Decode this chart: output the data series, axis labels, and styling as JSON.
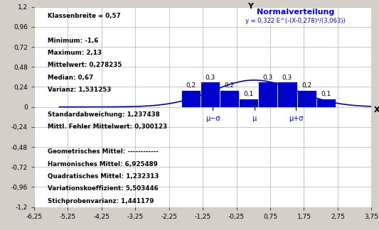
{
  "title": "Normalverteilung",
  "formula": "y = 0,322·E^(-(X-0,278)²/(3,063))",
  "bg_color": "#d4d0c8",
  "plot_bg_color": "#ffffff",
  "grid_color": "#b0b0b0",
  "bar_color": "#0000cc",
  "curve_color": "#0000cc",
  "text_color": "#000000",
  "blue_text_color": "#0000ee",
  "xlim": [
    -6.25,
    3.75
  ],
  "ylim": [
    -1.2,
    1.2
  ],
  "xticks": [
    -6.25,
    -5.25,
    -4.25,
    -3.25,
    -2.25,
    -1.25,
    -0.25,
    0.75,
    1.75,
    2.75,
    3.75
  ],
  "xtick_labels": [
    "-6,25",
    "-5,25",
    "-4,25",
    "-3,25",
    "-2,25",
    "-1,25",
    "-0,25",
    "0,75",
    "1,75",
    "2,75",
    "3,75"
  ],
  "yticks": [
    -1.2,
    -0.96,
    -0.72,
    -0.48,
    -0.24,
    0,
    0.24,
    0.48,
    0.72,
    0.96,
    1.2
  ],
  "ytick_labels": [
    "-1,2",
    "-0,96",
    "-0,72",
    "-0,48",
    "-0,24",
    "0",
    "0,24",
    "0,48",
    "0,72",
    "0,96",
    "1,2"
  ],
  "mu": 0.278,
  "sigma": 1.237438,
  "amp": 0.322,
  "bar_centers": [
    -1.595,
    -1.025,
    -0.455,
    0.115,
    0.685,
    1.255,
    1.825,
    2.395
  ],
  "bar_heights": [
    0.2,
    0.3,
    0.2,
    0.1,
    0.3,
    0.3,
    0.2,
    0.1
  ],
  "bar_width": 0.57,
  "stats_lines": [
    "Klassenbreite = 0,57",
    "",
    "Minimum: -1,6",
    "Maximum: 2,13",
    "Mittelwert: 0,278235",
    "Median: 0,67",
    "Varianz: 1,531253",
    "",
    "Standardabweichung: 1,237438",
    "Mittl. Fehler Mittelwert: 0,300123",
    "",
    "Geometrisches Mittel: ------------",
    "Harmonisches Mittel: 6,925489",
    "Quadratisches Mittel: 1,232313",
    "Variationskoeffizient: 5,503446",
    "Stichprobenvarianz: 1,441179"
  ]
}
